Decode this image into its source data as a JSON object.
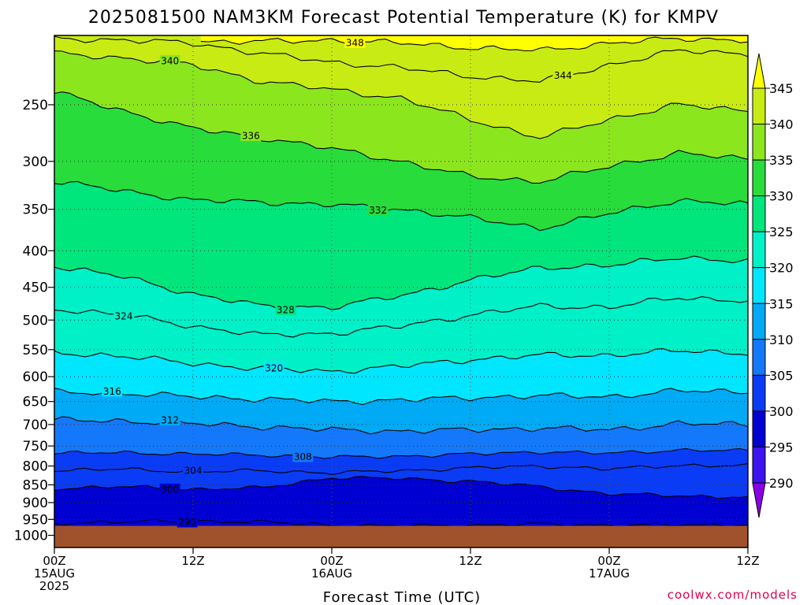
{
  "chart_data": {
    "type": "heatmap",
    "title": "2025081500 NAM3KM Forecast Potential Temperature (K) for KMPV",
    "xlabel": "Forecast Time (UTC)",
    "ylabel": "",
    "credit": "coolwx.com/models",
    "grid": true,
    "log_pressure_axis": true,
    "x_range_hours": [
      0,
      60
    ],
    "y_range_hPa": [
      200,
      1040
    ],
    "x_ticks": [
      {
        "hour": 0,
        "lines": [
          "00Z",
          "15AUG",
          "2025"
        ]
      },
      {
        "hour": 12,
        "lines": [
          "12Z"
        ]
      },
      {
        "hour": 24,
        "lines": [
          "00Z",
          "16AUG"
        ]
      },
      {
        "hour": 36,
        "lines": [
          "12Z"
        ]
      },
      {
        "hour": 48,
        "lines": [
          "00Z",
          "17AUG"
        ]
      },
      {
        "hour": 60,
        "lines": [
          "12Z"
        ]
      }
    ],
    "y_ticks": [
      250,
      300,
      350,
      400,
      450,
      500,
      550,
      600,
      650,
      700,
      750,
      800,
      850,
      900,
      950,
      1000
    ],
    "surface_pressure_hPa": 970,
    "surface_color": "#a0522d",
    "colorbar": {
      "placement": "right",
      "boundaries": [
        285,
        290,
        295,
        300,
        305,
        310,
        315,
        320,
        325,
        330,
        335,
        340,
        345,
        350
      ],
      "labels": [
        290,
        295,
        300,
        305,
        310,
        315,
        320,
        325,
        330,
        335,
        340,
        345
      ],
      "colors": [
        "#8a00e6",
        "#3c14f0",
        "#0000d2",
        "#0a3cf5",
        "#1478fa",
        "#00aaf5",
        "#00e6ff",
        "#00f0c8",
        "#00e67d",
        "#28dc3c",
        "#8ce61e",
        "#c8eb14",
        "#ffff00"
      ]
    },
    "time_hours": [
      0,
      6,
      12,
      18,
      24,
      30,
      36,
      42,
      48,
      54,
      60
    ],
    "contours": [
      {
        "level": 296,
        "label": "296",
        "label_hour": 11.5,
        "p_hPa": [
          962,
          957,
          955,
          958,
          968,
          970,
          968,
          965,
          968,
          967,
          966
        ]
      },
      {
        "level": 300,
        "label": "300",
        "label_hour": 10,
        "p_hPa": [
          860,
          855,
          862,
          858,
          830,
          833,
          840,
          855,
          875,
          880,
          885
        ]
      },
      {
        "level": 304,
        "label": "304",
        "label_hour": 12,
        "p_hPa": [
          812,
          808,
          815,
          812,
          818,
          812,
          805,
          800,
          808,
          798,
          800
        ]
      },
      {
        "level": 308,
        "label": "308",
        "label_hour": 21.5,
        "p_hPa": [
          768,
          766,
          770,
          772,
          778,
          775,
          770,
          764,
          768,
          760,
          762
        ]
      },
      {
        "level": 312,
        "label": "312",
        "label_hour": 10,
        "p_hPa": [
          690,
          692,
          698,
          705,
          712,
          715,
          712,
          708,
          712,
          698,
          700
        ]
      },
      {
        "level": 316,
        "label": "316",
        "label_hour": 5,
        "p_hPa": [
          630,
          633,
          640,
          645,
          650,
          647,
          642,
          638,
          640,
          628,
          630
        ]
      },
      {
        "level": 320,
        "label": "320",
        "label_hour": 19,
        "p_hPa": [
          555,
          562,
          575,
          585,
          590,
          580,
          568,
          560,
          560,
          552,
          556
        ]
      },
      {
        "level": 324,
        "label": "324",
        "label_hour": 6,
        "p_hPa": [
          482,
          492,
          510,
          525,
          522,
          510,
          492,
          478,
          480,
          465,
          470
        ]
      },
      {
        "level": 328,
        "label": "328",
        "label_hour": 20,
        "p_hPa": [
          420,
          435,
          460,
          478,
          480,
          462,
          440,
          422,
          420,
          408,
          415
        ]
      },
      {
        "level": 332,
        "label": "332",
        "label_hour": 28,
        "p_hPa": [
          320,
          330,
          340,
          342,
          345,
          350,
          360,
          372,
          355,
          340,
          345
        ]
      },
      {
        "level": 336,
        "label": "336",
        "label_hour": 17,
        "p_hPa": [
          240,
          255,
          270,
          278,
          288,
          300,
          315,
          320,
          305,
          292,
          298
        ]
      },
      {
        "level": 340,
        "label": "340",
        "label_hour": 10,
        "p_hPa": [
          212,
          215,
          220,
          232,
          238,
          245,
          262,
          278,
          262,
          250,
          255
        ]
      },
      {
        "level": 344,
        "label": "344",
        "label_hour": 44,
        "p_hPa": [
          202,
          203,
          205,
          212,
          218,
          222,
          228,
          232,
          220,
          210,
          212
        ]
      },
      {
        "level": 348,
        "label": "348",
        "label_hour": 26,
        "p_hPa": [
          null,
          null,
          null,
          204,
          203,
          205,
          208,
          210,
          205,
          202,
          203
        ]
      }
    ]
  }
}
